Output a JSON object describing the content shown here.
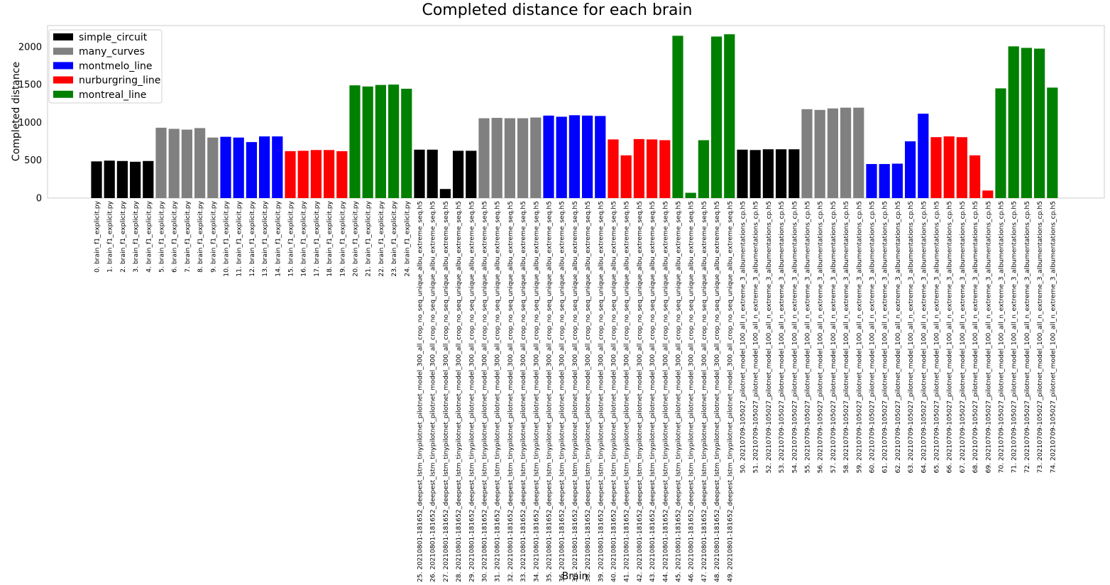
{
  "chart_data": {
    "type": "bar",
    "title": "Completed distance for each brain",
    "xlabel": "Brain",
    "ylabel": "Completed distance",
    "ylim": [
      0,
      2280
    ],
    "yticks": [
      0,
      500,
      1000,
      1500,
      2000
    ],
    "legend_position": "top-left",
    "series": [
      {
        "name": "simple_circuit",
        "color": "#000000"
      },
      {
        "name": "many_curves",
        "color": "#808080"
      },
      {
        "name": "montmelo_line",
        "color": "#0000ff"
      },
      {
        "name": "nurburgring_line",
        "color": "#ff0000"
      },
      {
        "name": "montreal_line",
        "color": "#008000"
      }
    ],
    "categories": [
      "0. brain_f1_explicit.py",
      "1. brain_f1_explicit.py",
      "2. brain_f1_explicit.py",
      "3. brain_f1_explicit.py",
      "4. brain_f1_explicit.py",
      "5. brain_f1_explicit.py",
      "6. brain_f1_explicit.py",
      "7. brain_f1_explicit.py",
      "8. brain_f1_explicit.py",
      "9. brain_f1_explicit.py",
      "10. brain_f1_explicit.py",
      "11. brain_f1_explicit.py",
      "12. brain_f1_explicit.py",
      "13. brain_f1_explicit.py",
      "14. brain_f1_explicit.py",
      "15. brain_f1_explicit.py",
      "16. brain_f1_explicit.py",
      "17. brain_f1_explicit.py",
      "18. brain_f1_explicit.py",
      "19. brain_f1_explicit.py",
      "20. brain_f1_explicit.py",
      "21. brain_f1_explicit.py",
      "22. brain_f1_explicit.py",
      "23. brain_f1_explicit.py",
      "24. brain_f1_explicit.py",
      "25. 20210801-181652_deepest_lstm_tinypilotnet_pilotnet_model_300_all_crop_no_seq_unique_albu_extreme_seq.h5",
      "26. 20210801-181652_deepest_lstm_tinypilotnet_pilotnet_model_300_all_crop_no_seq_unique_albu_extreme_seq.h5",
      "27. 20210801-181652_deepest_lstm_tinypilotnet_pilotnet_model_300_all_crop_no_seq_unique_albu_extreme_seq.h5",
      "28. 20210801-181652_deepest_lstm_tinypilotnet_pilotnet_model_300_all_crop_no_seq_unique_albu_extreme_seq.h5",
      "29. 20210801-181652_deepest_lstm_tinypilotnet_pilotnet_model_300_all_crop_no_seq_unique_albu_extreme_seq.h5",
      "30. 20210801-181652_deepest_lstm_tinypilotnet_pilotnet_model_300_all_crop_no_seq_unique_albu_extreme_seq.h5",
      "31. 20210801-181652_deepest_lstm_tinypilotnet_pilotnet_model_300_all_crop_no_seq_unique_albu_extreme_seq.h5",
      "32. 20210801-181652_deepest_lstm_tinypilotnet_pilotnet_model_300_all_crop_no_seq_unique_albu_extreme_seq.h5",
      "33. 20210801-181652_deepest_lstm_tinypilotnet_pilotnet_model_300_all_crop_no_seq_unique_albu_extreme_seq.h5",
      "34. 20210801-181652_deepest_lstm_tinypilotnet_pilotnet_model_300_all_crop_no_seq_unique_albu_extreme_seq.h5",
      "35. 20210801-181652_deepest_lstm_tinypilotnet_pilotnet_model_300_all_crop_no_seq_unique_albu_extreme_seq.h5",
      "36. 20210801-181652_deepest_lstm_tinypilotnet_pilotnet_model_300_all_crop_no_seq_unique_albu_extreme_seq.h5",
      "37. 20210801-181652_deepest_lstm_tinypilotnet_pilotnet_model_300_all_crop_no_seq_unique_albu_extreme_seq.h5",
      "38. 20210801-181652_deepest_lstm_tinypilotnet_pilotnet_model_300_all_crop_no_seq_unique_albu_extreme_seq.h5",
      "39. 20210801-181652_deepest_lstm_tinypilotnet_pilotnet_model_300_all_crop_no_seq_unique_albu_extreme_seq.h5",
      "40. 20210801-181652_deepest_lstm_tinypilotnet_pilotnet_model_300_all_crop_no_seq_unique_albu_extreme_seq.h5",
      "41. 20210801-181652_deepest_lstm_tinypilotnet_pilotnet_model_300_all_crop_no_seq_unique_albu_extreme_seq.h5",
      "42. 20210801-181652_deepest_lstm_tinypilotnet_pilotnet_model_300_all_crop_no_seq_unique_albu_extreme_seq.h5",
      "43. 20210801-181652_deepest_lstm_tinypilotnet_pilotnet_model_300_all_crop_no_seq_unique_albu_extreme_seq.h5",
      "44. 20210801-181652_deepest_lstm_tinypilotnet_pilotnet_model_300_all_crop_no_seq_unique_albu_extreme_seq.h5",
      "45. 20210801-181652_deepest_lstm_tinypilotnet_pilotnet_model_300_all_crop_no_seq_unique_albu_extreme_seq.h5",
      "46. 20210801-181652_deepest_lstm_tinypilotnet_pilotnet_model_300_all_crop_no_seq_unique_albu_extreme_seq.h5",
      "47. 20210801-181652_deepest_lstm_tinypilotnet_pilotnet_model_300_all_crop_no_seq_unique_albu_extreme_seq.h5",
      "48. 20210801-181652_deepest_lstm_tinypilotnet_pilotnet_model_300_all_crop_no_seq_unique_albu_extreme_seq.h5",
      "49. 20210801-181652_deepest_lstm_tinypilotnet_pilotnet_model_300_all_crop_no_seq_unique_albu_extreme_seq.h5",
      "50. 20210709-105027_pilotnet_model_100_all_n_extreme_3_albumentations_cp.h5",
      "51. 20210709-105027_pilotnet_model_100_all_n_extreme_3_albumentations_cp.h5",
      "52. 20210709-105027_pilotnet_model_100_all_n_extreme_3_albumentations_cp.h5",
      "53. 20210709-105027_pilotnet_model_100_all_n_extreme_3_albumentations_cp.h5",
      "54. 20210709-105027_pilotnet_model_100_all_n_extreme_3_albumentations_cp.h5",
      "55. 20210709-105027_pilotnet_model_100_all_n_extreme_3_albumentations_cp.h5",
      "56. 20210709-105027_pilotnet_model_100_all_n_extreme_3_albumentations_cp.h5",
      "57. 20210709-105027_pilotnet_model_100_all_n_extreme_3_albumentations_cp.h5",
      "58. 20210709-105027_pilotnet_model_100_all_n_extreme_3_albumentations_cp.h5",
      "59. 20210709-105027_pilotnet_model_100_all_n_extreme_3_albumentations_cp.h5",
      "60. 20210709-105027_pilotnet_model_100_all_n_extreme_3_albumentations_cp.h5",
      "61. 20210709-105027_pilotnet_model_100_all_n_extreme_3_albumentations_cp.h5",
      "62. 20210709-105027_pilotnet_model_100_all_n_extreme_3_albumentations_cp.h5",
      "63. 20210709-105027_pilotnet_model_100_all_n_extreme_3_albumentations_cp.h5",
      "64. 20210709-105027_pilotnet_model_100_all_n_extreme_3_albumentations_cp.h5",
      "65. 20210709-105027_pilotnet_model_100_all_n_extreme_3_albumentations_cp.h5",
      "66. 20210709-105027_pilotnet_model_100_all_n_extreme_3_albumentations_cp.h5",
      "67. 20210709-105027_pilotnet_model_100_all_n_extreme_3_albumentations_cp.h5",
      "68. 20210709-105027_pilotnet_model_100_all_n_extreme_3_albumentations_cp.h5",
      "69. 20210709-105027_pilotnet_model_100_all_n_extreme_3_albumentations_cp.h5",
      "70. 20210709-105027_pilotnet_model_100_all_n_extreme_3_albumentations_cp.h5",
      "71. 20210709-105027_pilotnet_model_100_all_n_extreme_3_albumentations_cp.h5",
      "72. 20210709-105027_pilotnet_model_100_all_n_extreme_3_albumentations_cp.h5",
      "73. 20210709-105027_pilotnet_model_100_all_n_extreme_3_albumentations_cp.h5",
      "74. 20210709-105027_pilotnet_model_100_all_n_extreme_3_albumentations_cp.h5"
    ],
    "values": [
      485,
      495,
      490,
      480,
      490,
      930,
      915,
      905,
      925,
      800,
      810,
      800,
      740,
      815,
      815,
      620,
      625,
      635,
      635,
      620,
      1490,
      1475,
      1495,
      1500,
      1445,
      640,
      640,
      120,
      625,
      625,
      1055,
      1060,
      1055,
      1055,
      1065,
      1090,
      1075,
      1095,
      1090,
      1085,
      775,
      565,
      780,
      775,
      765,
      2145,
      70,
      765,
      2135,
      2165,
      640,
      635,
      645,
      645,
      645,
      1175,
      1165,
      1185,
      1195,
      1195,
      450,
      450,
      455,
      750,
      1115,
      805,
      815,
      805,
      565,
      100,
      1450,
      2005,
      1985,
      1975,
      1460
    ],
    "bar_series": [
      0,
      0,
      0,
      0,
      0,
      1,
      1,
      1,
      1,
      1,
      2,
      2,
      2,
      2,
      2,
      3,
      3,
      3,
      3,
      3,
      4,
      4,
      4,
      4,
      4,
      0,
      0,
      0,
      0,
      0,
      1,
      1,
      1,
      1,
      1,
      2,
      2,
      2,
      2,
      2,
      3,
      3,
      3,
      3,
      3,
      4,
      4,
      4,
      4,
      4,
      0,
      0,
      0,
      0,
      0,
      1,
      1,
      1,
      1,
      1,
      2,
      2,
      2,
      2,
      2,
      3,
      3,
      3,
      3,
      3,
      4,
      4,
      4,
      4,
      4
    ]
  }
}
